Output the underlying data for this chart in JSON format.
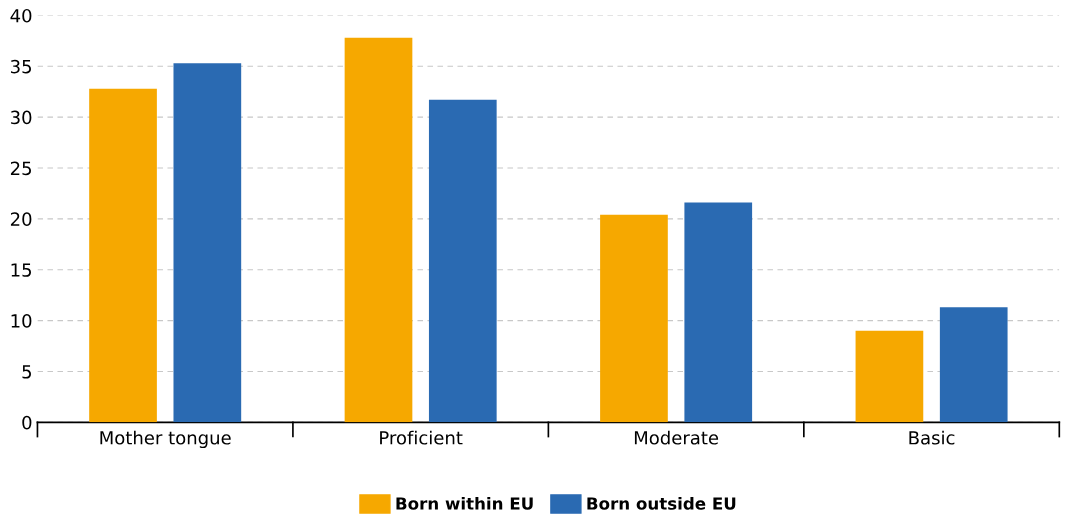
{
  "chart_data": {
    "type": "bar",
    "categories": [
      "Mother tongue",
      "Proficient",
      "Moderate",
      "Basic"
    ],
    "series": [
      {
        "name": "Born within EU",
        "color": "#f6a800",
        "values": [
          32.8,
          37.8,
          20.4,
          9.0
        ]
      },
      {
        "name": "Born outside EU",
        "color": "#2a6ab2",
        "values": [
          35.3,
          31.7,
          21.6,
          11.3
        ]
      }
    ],
    "ylim": [
      0,
      40
    ],
    "yticks": [
      0,
      5,
      10,
      15,
      20,
      25,
      30,
      35,
      40
    ],
    "grid": "y",
    "legend": "bottom"
  }
}
